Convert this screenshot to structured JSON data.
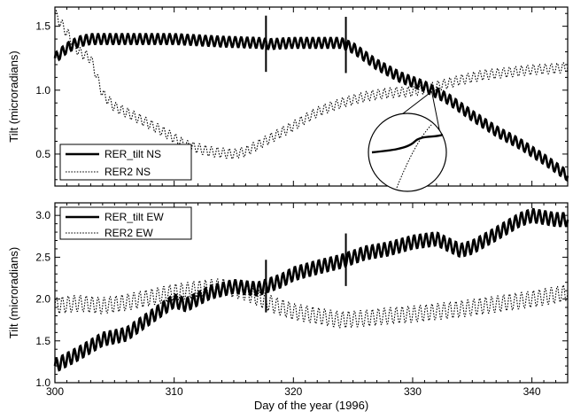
{
  "chart_data": [
    {
      "type": "line",
      "title": "",
      "xlabel": "",
      "ylabel": "Tilt (microradians)",
      "xlim": [
        300,
        343
      ],
      "ylim": [
        0.25,
        1.65
      ],
      "xticks": [
        "300",
        "310",
        "320",
        "330",
        "340"
      ],
      "yticks": [
        "0.5",
        "1.0",
        "1.5"
      ],
      "legend_position": "bottom-left",
      "inset": "magnified-circle",
      "series": [
        {
          "name": "RER_tilt  NS",
          "style": "solid-thick",
          "color": "#000000",
          "x": [
            300,
            301,
            302,
            303,
            304,
            306,
            310,
            314,
            317,
            318,
            320,
            324,
            325,
            327,
            329,
            331,
            333,
            335,
            337,
            339,
            341,
            343
          ],
          "y": [
            1.25,
            1.33,
            1.38,
            1.4,
            1.4,
            1.4,
            1.4,
            1.38,
            1.37,
            1.36,
            1.37,
            1.37,
            1.33,
            1.2,
            1.1,
            1.03,
            0.93,
            0.8,
            0.68,
            0.58,
            0.46,
            0.33
          ],
          "oscillation_amplitude": 0.04
        },
        {
          "name": "RER2  NS",
          "style": "dotted",
          "color": "#000000",
          "x": [
            300,
            301,
            302,
            303,
            304,
            305,
            307,
            309,
            311,
            313,
            315,
            316,
            318,
            320,
            322,
            324,
            326,
            328,
            330,
            332,
            334,
            336,
            338,
            340,
            342,
            343
          ],
          "y": [
            1.6,
            1.45,
            1.3,
            1.25,
            0.97,
            0.87,
            0.78,
            0.68,
            0.57,
            0.52,
            0.5,
            0.52,
            0.62,
            0.72,
            0.83,
            0.9,
            0.95,
            0.98,
            0.99,
            1.03,
            1.08,
            1.12,
            1.14,
            1.16,
            1.17,
            1.18
          ],
          "oscillation_amplitude": 0.04
        }
      ]
    },
    {
      "type": "line",
      "title": "",
      "xlabel": "Day of the year (1996)",
      "ylabel": "Tilt (microradians)",
      "xlim": [
        300,
        343
      ],
      "ylim": [
        1.0,
        3.15
      ],
      "xticks": [
        "300",
        "310",
        "320",
        "330",
        "340"
      ],
      "yticks": [
        "1.0",
        "1.5",
        "2.0",
        "2.5",
        "3.0"
      ],
      "legend_position": "top-left",
      "series": [
        {
          "name": "RER_tilt  EW",
          "style": "solid-thick",
          "color": "#000000",
          "x": [
            300,
            302,
            304,
            306,
            308,
            310,
            311,
            313,
            315,
            317,
            319,
            320,
            322,
            324,
            326,
            328,
            330,
            332,
            334,
            335,
            337,
            339,
            340,
            342,
            343
          ],
          "y": [
            1.2,
            1.35,
            1.52,
            1.58,
            1.78,
            1.98,
            1.93,
            2.08,
            2.15,
            2.12,
            2.22,
            2.3,
            2.38,
            2.45,
            2.55,
            2.6,
            2.68,
            2.72,
            2.58,
            2.62,
            2.78,
            2.95,
            3.0,
            2.95,
            2.95
          ],
          "oscillation_amplitude": 0.08
        },
        {
          "name": "RER2   EW",
          "style": "dotted",
          "color": "#000000",
          "x": [
            300,
            302,
            304,
            306,
            308,
            310,
            312,
            314,
            316,
            318,
            320,
            322,
            324,
            326,
            328,
            330,
            332,
            334,
            336,
            338,
            340,
            342,
            343
          ],
          "y": [
            1.92,
            1.95,
            1.92,
            1.96,
            2.02,
            2.08,
            2.12,
            2.15,
            2.08,
            1.95,
            1.85,
            1.8,
            1.75,
            1.77,
            1.8,
            1.82,
            1.85,
            1.88,
            1.92,
            1.96,
            2.0,
            2.05,
            2.08
          ],
          "oscillation_amplitude": 0.1
        }
      ]
    }
  ]
}
